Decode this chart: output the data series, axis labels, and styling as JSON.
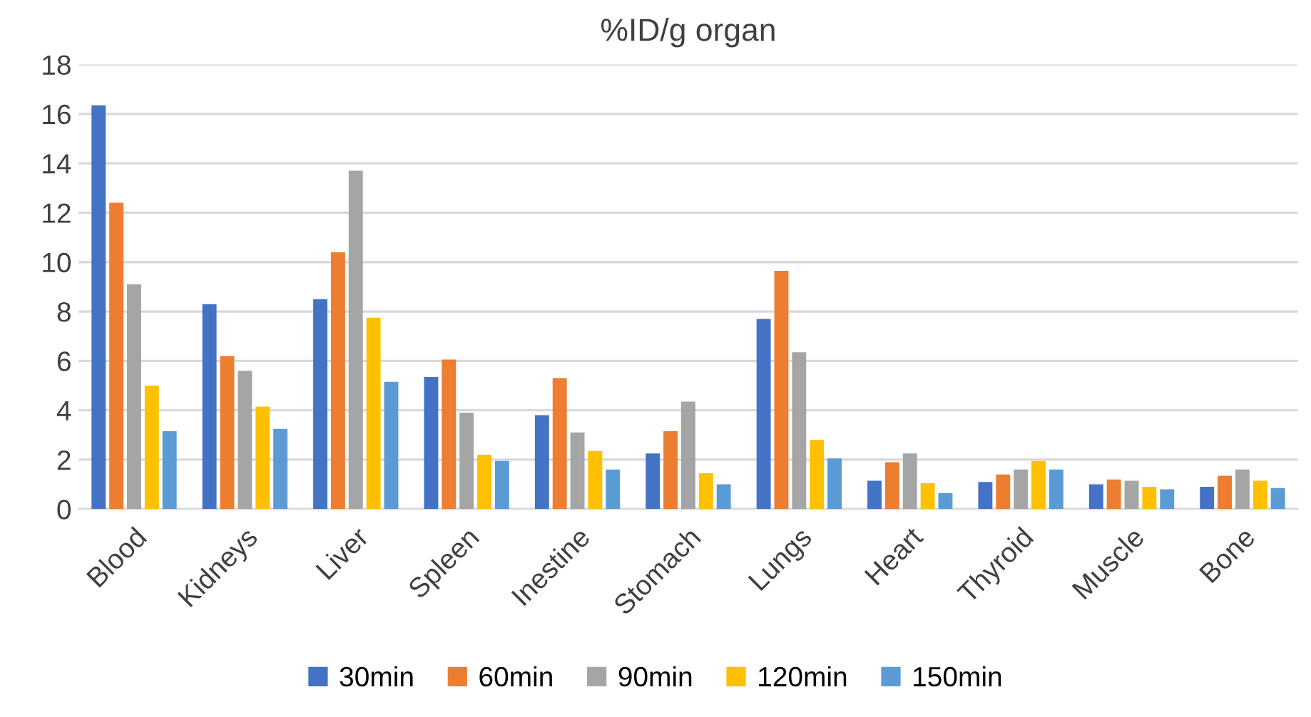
{
  "chart_data": {
    "type": "bar",
    "title": "%ID/g organ",
    "categories": [
      "Blood",
      "Kidneys",
      "Liver",
      "Spleen",
      "Inestine",
      "Stomach",
      "Lungs",
      "Heart",
      "Thyroid",
      "Muscle",
      "Bone"
    ],
    "series": [
      {
        "name": "30min",
        "color": "#4472c4",
        "values": [
          16.35,
          8.3,
          8.5,
          5.35,
          3.8,
          2.25,
          7.7,
          1.15,
          1.1,
          1.0,
          0.9
        ]
      },
      {
        "name": "60min",
        "color": "#ed7d31",
        "values": [
          12.4,
          6.2,
          10.4,
          6.05,
          5.3,
          3.15,
          9.65,
          1.9,
          1.4,
          1.2,
          1.35
        ]
      },
      {
        "name": "90min",
        "color": "#a5a5a5",
        "values": [
          9.1,
          5.6,
          13.7,
          3.9,
          3.1,
          4.35,
          6.35,
          2.25,
          1.6,
          1.15,
          1.6
        ]
      },
      {
        "name": "120min",
        "color": "#ffc000",
        "values": [
          5.0,
          4.15,
          7.75,
          2.2,
          2.35,
          1.45,
          2.8,
          1.05,
          1.95,
          0.9,
          1.15
        ]
      },
      {
        "name": "150min",
        "color": "#5b9bd5",
        "values": [
          3.15,
          3.25,
          5.15,
          1.95,
          1.6,
          1.0,
          2.05,
          0.65,
          1.6,
          0.8,
          0.85
        ]
      }
    ],
    "ylim": [
      0,
      18
    ],
    "yticks": [
      0,
      2,
      4,
      6,
      8,
      10,
      12,
      14,
      16,
      18
    ],
    "grid": "y",
    "legend": "bottom"
  }
}
